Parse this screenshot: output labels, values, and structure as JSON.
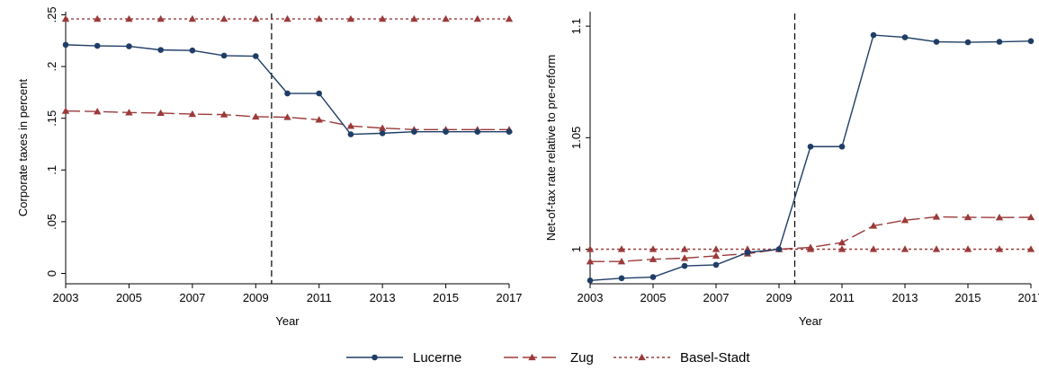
{
  "chart_data": [
    {
      "type": "line",
      "title": "",
      "xlabel": "Year",
      "ylabel": "Corporate taxes in percent",
      "x": [
        2003,
        2004,
        2005,
        2006,
        2007,
        2008,
        2009,
        2010,
        2011,
        2012,
        2013,
        2014,
        2015,
        2016,
        2017
      ],
      "xlim": [
        2003,
        2017
      ],
      "xticks": [
        2003,
        2005,
        2007,
        2009,
        2011,
        2013,
        2015,
        2017
      ],
      "ylim": [
        -0.01,
        0.253
      ],
      "yticks": [
        0,
        0.05,
        0.1,
        0.15,
        0.2,
        0.25
      ],
      "yticklabels": [
        "0",
        ".05",
        ".1",
        ".15",
        ".2",
        ".25"
      ],
      "vline": 2009.5,
      "grid": false,
      "series": [
        {
          "name": "Lucerne",
          "color": "#1f3d66",
          "dash": "",
          "marker": "circle",
          "values": [
            0.221,
            0.22,
            0.2195,
            0.216,
            0.2155,
            0.2105,
            0.21,
            0.174,
            0.174,
            0.1345,
            0.1355,
            0.137,
            0.137,
            0.137,
            0.137
          ]
        },
        {
          "name": "Zug",
          "color": "#9b3a3a",
          "dash": "16,5",
          "marker": "triangle",
          "values": [
            0.157,
            0.1565,
            0.1555,
            0.155,
            0.154,
            0.1535,
            0.1515,
            0.151,
            0.1485,
            0.1425,
            0.1405,
            0.139,
            0.139,
            0.139,
            0.139
          ]
        },
        {
          "name": "Basel-Stadt",
          "color": "#9b3a3a",
          "dash": "3,3",
          "marker": "triangle",
          "values": [
            0.246,
            0.246,
            0.246,
            0.246,
            0.246,
            0.246,
            0.246,
            0.246,
            0.246,
            0.246,
            0.246,
            0.246,
            0.246,
            0.246,
            0.246
          ]
        }
      ]
    },
    {
      "type": "line",
      "title": "",
      "xlabel": "Year",
      "ylabel": "Net-of-tax rate relative to pre-reform",
      "x": [
        2003,
        2004,
        2005,
        2006,
        2007,
        2008,
        2009,
        2010,
        2011,
        2012,
        2013,
        2014,
        2015,
        2016,
        2017
      ],
      "xlim": [
        2003,
        2017
      ],
      "xticks": [
        2003,
        2005,
        2007,
        2009,
        2011,
        2013,
        2015,
        2017
      ],
      "ylim": [
        0.9845,
        1.1065
      ],
      "yticks": [
        1,
        1.05,
        1.1
      ],
      "yticklabels": [
        "1",
        "1.05",
        "1.1"
      ],
      "vline": 2009.5,
      "grid": false,
      "series": [
        {
          "name": "Lucerne",
          "color": "#1f3d66",
          "dash": "",
          "marker": "circle",
          "values": [
            0.986,
            0.987,
            0.9875,
            0.9925,
            0.993,
            0.9985,
            1.0,
            1.046,
            1.046,
            1.096,
            1.095,
            1.093,
            1.0928,
            1.093,
            1.0933
          ]
        },
        {
          "name": "Zug",
          "color": "#9b3a3a",
          "dash": "16,5",
          "marker": "triangle",
          "values": [
            0.9945,
            0.9945,
            0.9955,
            0.996,
            0.997,
            0.998,
            1.0,
            1.0008,
            1.003,
            1.0105,
            1.013,
            1.0145,
            1.0143,
            1.0142,
            1.0143
          ]
        },
        {
          "name": "Basel-Stadt",
          "color": "#9b3a3a",
          "dash": "3,3",
          "marker": "triangle",
          "values": [
            1.0,
            1.0,
            1.0,
            1.0,
            1.0,
            1.0,
            1.0,
            1.0,
            1.0,
            1.0,
            1.0,
            1.0,
            1.0,
            1.0,
            1.0
          ]
        }
      ]
    }
  ],
  "legend": {
    "placement": "bottom-center",
    "entries": [
      {
        "label": "Lucerne",
        "color": "#1f3d66",
        "dash": "",
        "marker": "circle"
      },
      {
        "label": "Zug",
        "color": "#9b3a3a",
        "dash": "16,5",
        "marker": "triangle"
      },
      {
        "label": "Basel-Stadt",
        "color": "#9b3a3a",
        "dash": "3,3",
        "marker": "triangle"
      }
    ]
  }
}
